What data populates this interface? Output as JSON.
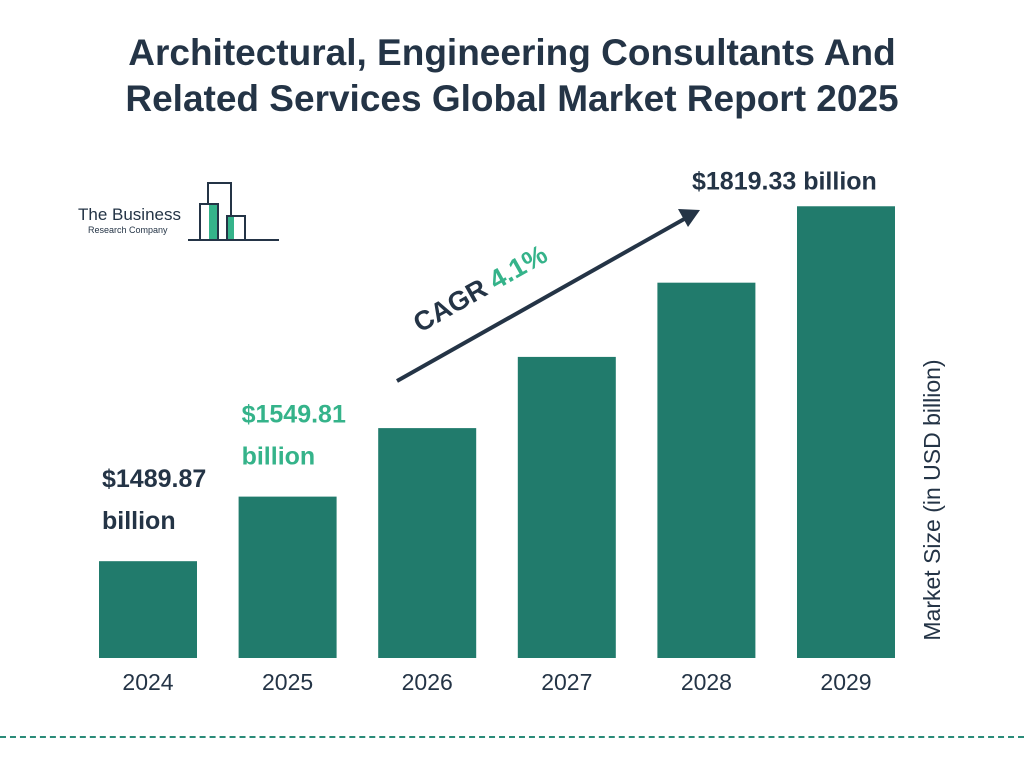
{
  "title": {
    "line1": "Architectural, Engineering Consultants And",
    "line2": "Related Services Global Market Report 2025"
  },
  "logo": {
    "name": "The Business",
    "sub": "Research Company"
  },
  "chart_data": {
    "type": "bar",
    "categories": [
      "2024",
      "2025",
      "2026",
      "2027",
      "2028",
      "2029"
    ],
    "values": [
      1489.87,
      1549.81,
      1613.4,
      1679.5,
      1748.4,
      1819.33
    ],
    "ylabel": "Market Size (in USD billion)",
    "ylim": [
      1400,
      1840
    ],
    "grid": false,
    "legend": "none",
    "data_labels": [
      {
        "category": "2024",
        "lines": [
          "$1489.87",
          "billion"
        ],
        "color": "#243446"
      },
      {
        "category": "2025",
        "lines": [
          "$1549.81",
          "billion"
        ],
        "color": "#35b38a"
      },
      {
        "category": "2029",
        "lines": [
          "$1819.33 billion"
        ],
        "color": "#243446"
      }
    ],
    "annotation": {
      "label": "CAGR",
      "value": "4.1%",
      "label_color": "#243446",
      "value_color": "#35b38a"
    }
  },
  "colors": {
    "bar": "#217b6c",
    "text": "#243446",
    "accent": "#35b38a",
    "divider": "#2a8b78"
  }
}
